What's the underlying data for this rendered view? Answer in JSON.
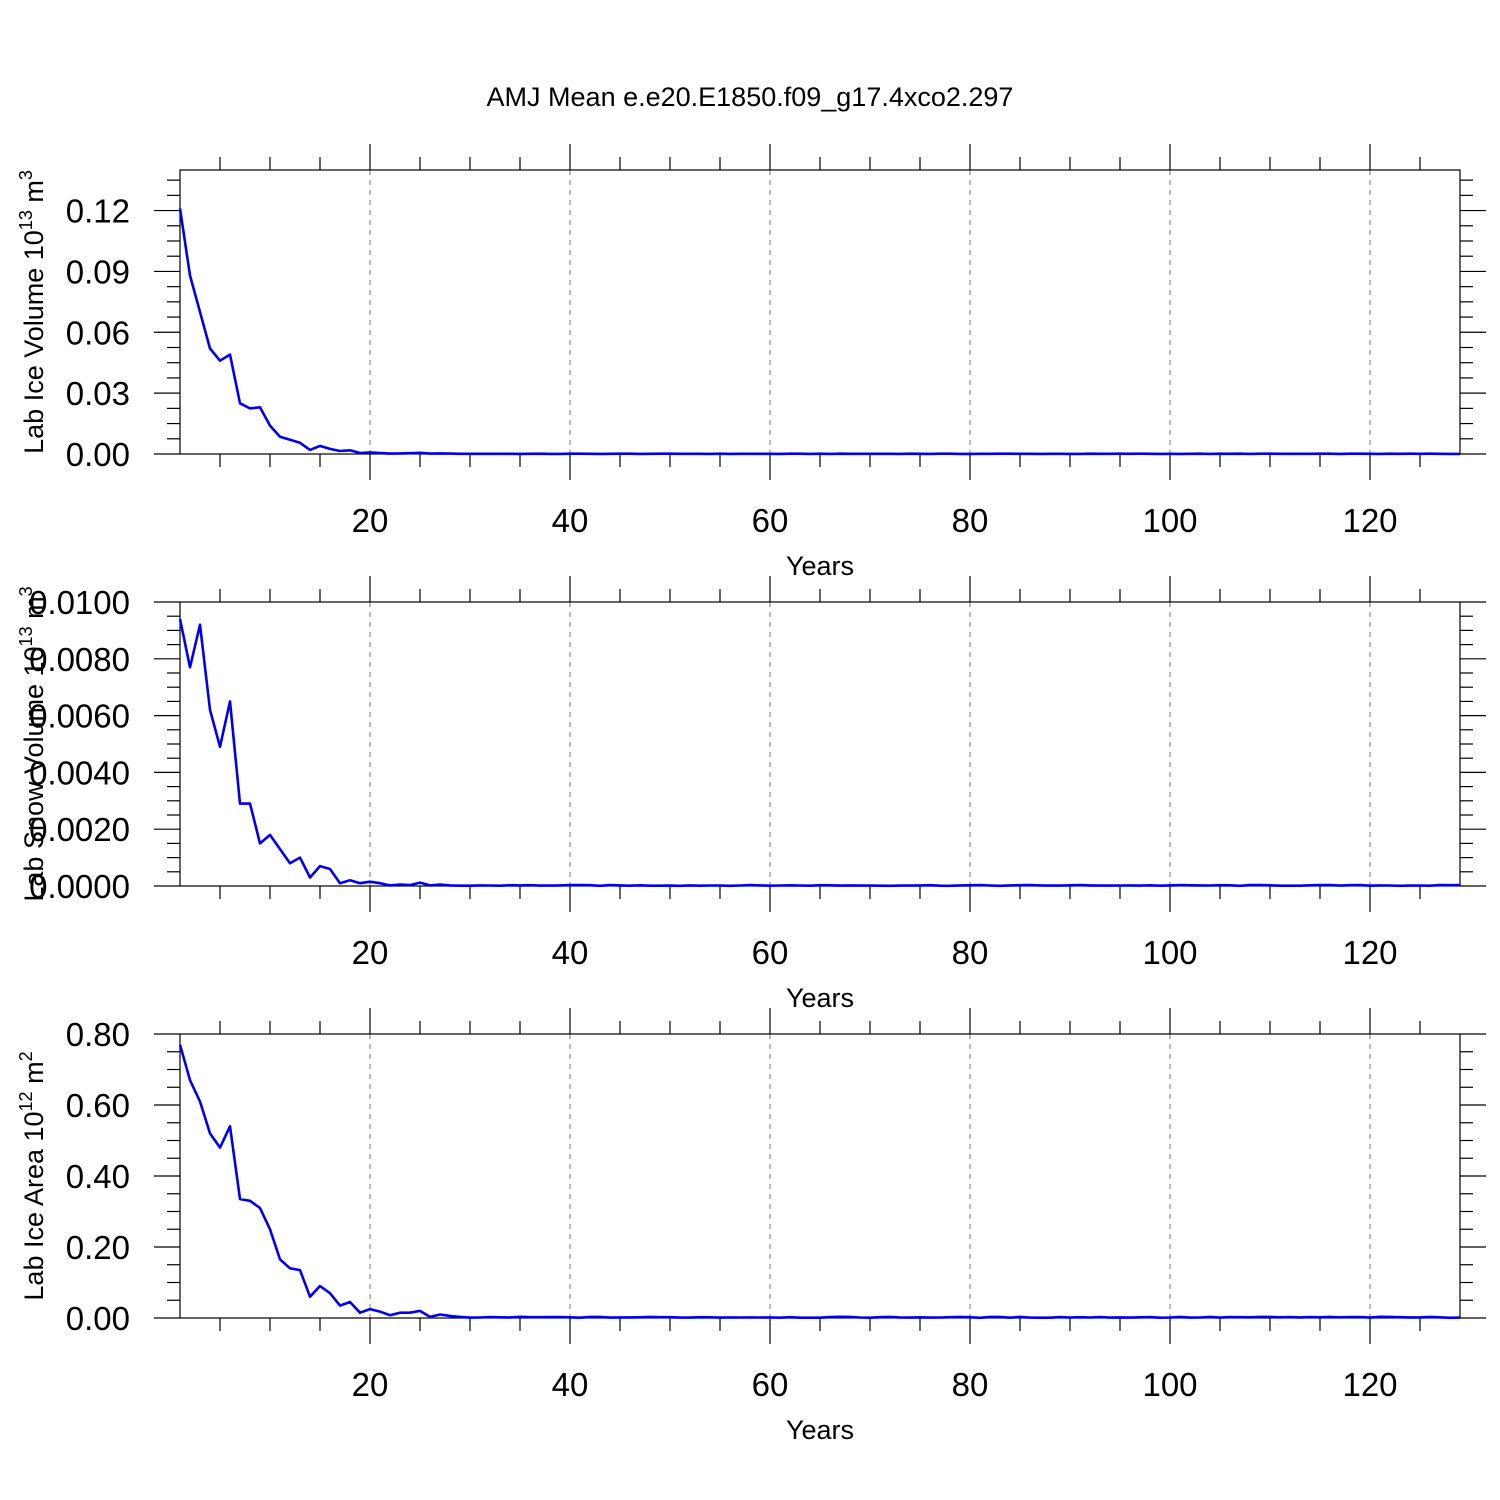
{
  "figure": {
    "title": "AMJ Mean e.e20.E1850.f09_g17.4xco2.297"
  },
  "colors": {
    "series": "#0000ee",
    "grid": "#777777"
  },
  "chart_data": [
    {
      "type": "line",
      "ylabel_main": "Lab Ice Volume 10",
      "ylabel_exp": "13",
      "ylabel_unit": " m",
      "ylabel_unit_exp": "3",
      "xlabel": "Years",
      "xlim": [
        1,
        129
      ],
      "ylim": [
        0,
        0.14
      ],
      "xticks": [
        20,
        40,
        60,
        80,
        100,
        120
      ],
      "xtick_labels": [
        "20",
        "40",
        "60",
        "80",
        "100",
        "120"
      ],
      "yticks": [
        0,
        0.03,
        0.06,
        0.09,
        0.12
      ],
      "ytick_labels": [
        "0.00",
        "0.03",
        "0.06",
        "0.09",
        "0.12"
      ],
      "grid": "vertical dashed at x ticks",
      "series": [
        {
          "x": [
            1,
            2,
            3,
            4,
            5,
            6,
            7,
            8,
            9,
            10,
            11,
            12,
            13,
            14,
            15,
            16,
            17,
            18,
            19,
            20,
            21,
            22,
            23,
            24,
            25,
            26,
            27,
            28,
            29,
            30
          ],
          "values": [
            0.121,
            0.088,
            0.07,
            0.052,
            0.046,
            0.049,
            0.025,
            0.0225,
            0.023,
            0.014,
            0.0085,
            0.007,
            0.0055,
            0.002,
            0.004,
            0.0025,
            0.0015,
            0.0018,
            0.0005,
            0.0008,
            0.0005,
            0.0002,
            0.0003,
            0.0004,
            0.0006,
            0.0002,
            0.0003,
            0.0002,
            0.0001,
            0.0001
          ],
          "tail_value": 0.0001
        }
      ]
    },
    {
      "type": "line",
      "ylabel_main": "Lab Snow Volume 10",
      "ylabel_exp": "13",
      "ylabel_unit": " m",
      "ylabel_unit_exp": "3",
      "xlabel": "Years",
      "xlim": [
        1,
        129
      ],
      "ylim": [
        0,
        0.01
      ],
      "xticks": [
        20,
        40,
        60,
        80,
        100,
        120
      ],
      "xtick_labels": [
        "20",
        "40",
        "60",
        "80",
        "100",
        "120"
      ],
      "yticks": [
        0,
        0.002,
        0.004,
        0.006,
        0.008,
        0.01
      ],
      "ytick_labels": [
        "0.0000",
        "0.0020",
        "0.0040",
        "0.0060",
        "0.0080",
        "0.0100"
      ],
      "grid": "vertical dashed at x ticks",
      "series": [
        {
          "x": [
            1,
            2,
            3,
            4,
            5,
            6,
            7,
            8,
            9,
            10,
            11,
            12,
            13,
            14,
            15,
            16,
            17,
            18,
            19,
            20,
            21,
            22,
            23,
            24,
            25,
            26,
            27,
            28,
            29,
            30
          ],
          "values": [
            0.0094,
            0.0077,
            0.0092,
            0.0062,
            0.0049,
            0.0065,
            0.0029,
            0.0029,
            0.0015,
            0.0018,
            0.0013,
            0.0008,
            0.001,
            0.0003,
            0.0007,
            0.0006,
            0.0001,
            0.0002,
            0.0001,
            0.00015,
            0.0001,
            2e-05,
            5e-05,
            3e-05,
            0.00012,
            2e-05,
            5e-05,
            2e-05,
            1e-05,
            1e-05
          ],
          "tail_value": 2e-05
        }
      ]
    },
    {
      "type": "line",
      "ylabel_main": "Lab Ice Area 10",
      "ylabel_exp": "12",
      "ylabel_unit": " m",
      "ylabel_unit_exp": "2",
      "xlabel": "Years",
      "xlim": [
        1,
        129
      ],
      "ylim": [
        0,
        0.8
      ],
      "xticks": [
        20,
        40,
        60,
        80,
        100,
        120
      ],
      "xtick_labels": [
        "20",
        "40",
        "60",
        "80",
        "100",
        "120"
      ],
      "yticks": [
        0,
        0.2,
        0.4,
        0.6,
        0.8
      ],
      "ytick_labels": [
        "0.00",
        "0.20",
        "0.40",
        "0.60",
        "0.80"
      ],
      "grid": "vertical dashed at x ticks",
      "series": [
        {
          "x": [
            1,
            2,
            3,
            4,
            5,
            6,
            7,
            8,
            9,
            10,
            11,
            12,
            13,
            14,
            15,
            16,
            17,
            18,
            19,
            20,
            21,
            22,
            23,
            24,
            25,
            26,
            27,
            28,
            29,
            30
          ],
          "values": [
            0.77,
            0.67,
            0.61,
            0.52,
            0.48,
            0.54,
            0.335,
            0.33,
            0.31,
            0.25,
            0.165,
            0.14,
            0.135,
            0.06,
            0.09,
            0.07,
            0.035,
            0.045,
            0.015,
            0.025,
            0.018,
            0.008,
            0.015,
            0.015,
            0.02,
            0.003,
            0.01,
            0.006,
            0.003,
            0.001
          ],
          "tail_value": 0.002
        }
      ]
    }
  ]
}
